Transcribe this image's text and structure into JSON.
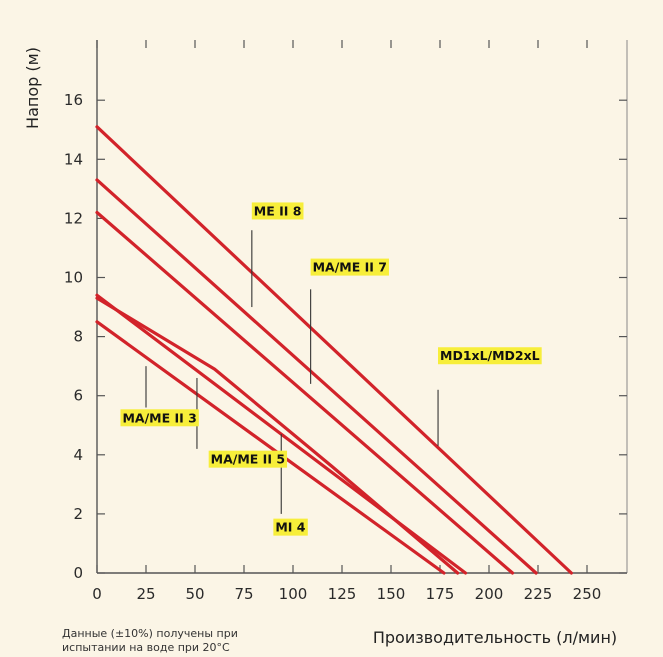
{
  "chart_data": {
    "type": "line",
    "ylabel": "Напор (м)",
    "xlabel": "Производительность (л/мин)",
    "note_lines": [
      "Данные (±10%) получены при",
      "испытании на воде при 20°С"
    ],
    "xlim": [
      0,
      270
    ],
    "ylim": [
      0,
      18
    ],
    "xticks": [
      0,
      25,
      50,
      75,
      100,
      125,
      150,
      175,
      200,
      225,
      250
    ],
    "yticks": [
      0,
      2,
      4,
      6,
      8,
      10,
      12,
      14,
      16
    ],
    "grid": false,
    "line_color": "#d2232a",
    "label_bg": "#f7ee3a",
    "series": [
      {
        "name": "MD1xL/MD2xL",
        "points": [
          [
            0,
            15.1
          ],
          [
            242,
            0
          ]
        ],
        "label": {
          "x": 175,
          "y": 7.2
        },
        "leader": [
          [
            174,
            6.2
          ],
          [
            174,
            4.3
          ]
        ]
      },
      {
        "name": "MA/ME II 7",
        "points": [
          [
            0,
            13.3
          ],
          [
            224,
            0
          ]
        ],
        "label": {
          "x": 110,
          "y": 10.2
        },
        "leader": [
          [
            109,
            9.6
          ],
          [
            109,
            6.4
          ]
        ]
      },
      {
        "name": "ME II 8",
        "points": [
          [
            0,
            12.2
          ],
          [
            212,
            0
          ]
        ],
        "label": {
          "x": 80,
          "y": 12.1
        },
        "leader": [
          [
            79,
            11.6
          ],
          [
            79,
            9.0
          ]
        ]
      },
      {
        "name": "MA/ME II 5",
        "points": [
          [
            0,
            9.4
          ],
          [
            188,
            0
          ]
        ],
        "label": {
          "x": 58,
          "y": 3.7
        },
        "leader": [
          [
            51,
            4.2
          ],
          [
            51,
            6.6
          ]
        ]
      },
      {
        "name": "MI 4",
        "points": [
          [
            0,
            9.3
          ],
          [
            60,
            6.9
          ],
          [
            120,
            3.6
          ],
          [
            184,
            0
          ]
        ],
        "label": {
          "x": 91,
          "y": 1.4
        },
        "leader": [
          [
            94,
            2.0
          ],
          [
            94,
            4.7
          ]
        ]
      },
      {
        "name": "MA/ME II 3",
        "points": [
          [
            0,
            8.5
          ],
          [
            177,
            0
          ]
        ],
        "label": {
          "x": 13,
          "y": 5.1
        },
        "leader": [
          [
            25,
            5.6
          ],
          [
            25,
            7.0
          ]
        ]
      }
    ]
  }
}
